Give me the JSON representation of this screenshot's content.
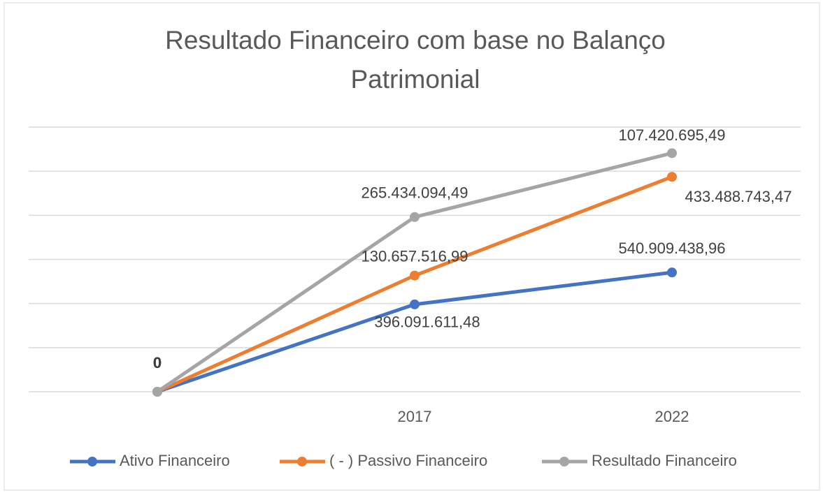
{
  "chart_data": {
    "type": "line",
    "stacked": true,
    "title": "Resultado Financeiro com base no Balanço Patrimonial",
    "categories": [
      null,
      "2017",
      "2022"
    ],
    "series": [
      {
        "name": "Ativo Financeiro",
        "color": "#4472c4",
        "values": [
          0,
          396091611.48,
          540909438.96
        ],
        "value_labels": [
          "0",
          "396.091.611,48",
          "540.909.438,96"
        ]
      },
      {
        "name": "( - ) Passivo Financeiro",
        "color": "#ed7d31",
        "values": [
          0,
          130657516.99,
          433488743.47
        ],
        "value_labels": [
          "0",
          "130.657.516,99",
          "433.488.743,47"
        ]
      },
      {
        "name": "Resultado Financeiro",
        "color": "#a5a5a5",
        "values": [
          0,
          265434094.49,
          107420695.49
        ],
        "value_labels": [
          "0",
          "265.434.094,49",
          "107.420.695,49"
        ]
      }
    ],
    "ylim": [
      0,
      1200000000
    ],
    "yticks": [
      0,
      200000000,
      400000000,
      600000000,
      800000000,
      1000000000,
      1200000000
    ],
    "grid": true,
    "legend": "bottom"
  }
}
